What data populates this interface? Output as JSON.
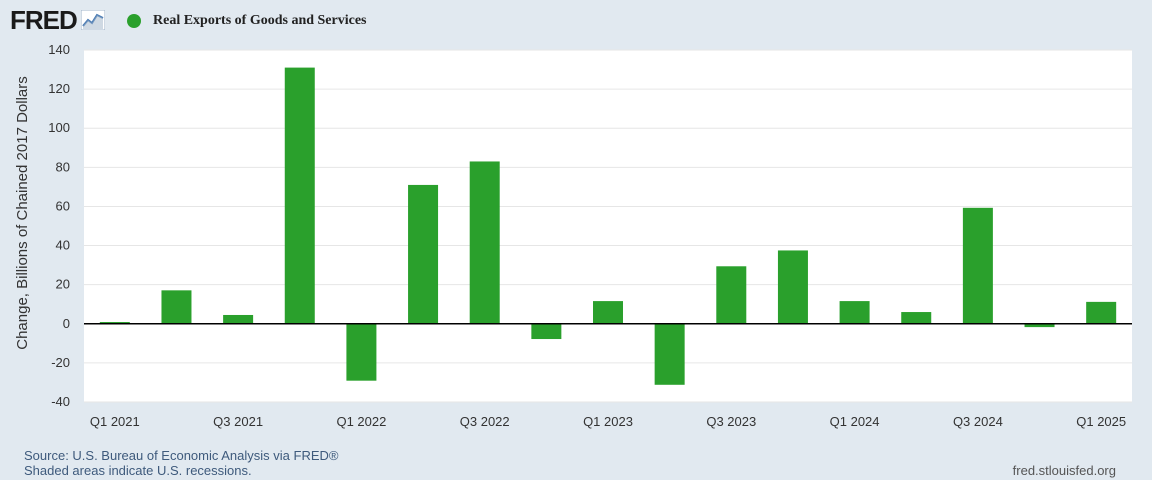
{
  "header": {
    "logo_text": "FRED",
    "legend_label": "Real Exports of Goods and Services",
    "legend_color": "#2aa02c"
  },
  "footer": {
    "source": "Source: U.S. Bureau of Economic Analysis via FRED®",
    "recession_note": "Shaded areas indicate U.S. recessions.",
    "site": "fred.stlouisfed.org"
  },
  "chart_data": {
    "type": "bar",
    "title": "",
    "xlabel": "",
    "ylabel": "Change, Billions of Chained 2017 Dollars",
    "ylim": [
      -40,
      140
    ],
    "yticks": [
      -40,
      -20,
      0,
      20,
      40,
      60,
      80,
      100,
      120,
      140
    ],
    "grid": true,
    "legend_placement": "top-left",
    "bar_color": "#2aa02c",
    "categories": [
      "Q1 2021",
      "Q2 2021",
      "Q3 2021",
      "Q4 2021",
      "Q1 2022",
      "Q2 2022",
      "Q3 2022",
      "Q4 2022",
      "Q1 2023",
      "Q2 2023",
      "Q3 2023",
      "Q4 2023",
      "Q1 2024",
      "Q2 2024",
      "Q3 2024",
      "Q4 2024",
      "Q1 2025"
    ],
    "tick_labels": [
      "Q1 2021",
      "Q3 2021",
      "Q1 2022",
      "Q3 2022",
      "Q1 2023",
      "Q3 2023",
      "Q1 2024",
      "Q3 2024",
      "Q1 2025"
    ],
    "series": [
      {
        "name": "Real Exports of Goods and Services",
        "values": [
          0.9,
          17.1,
          4.5,
          131.0,
          -29.1,
          71.0,
          83.0,
          -7.8,
          11.6,
          -31.2,
          29.4,
          37.5,
          11.6,
          6.0,
          59.3,
          -1.7,
          11.2
        ]
      }
    ]
  }
}
